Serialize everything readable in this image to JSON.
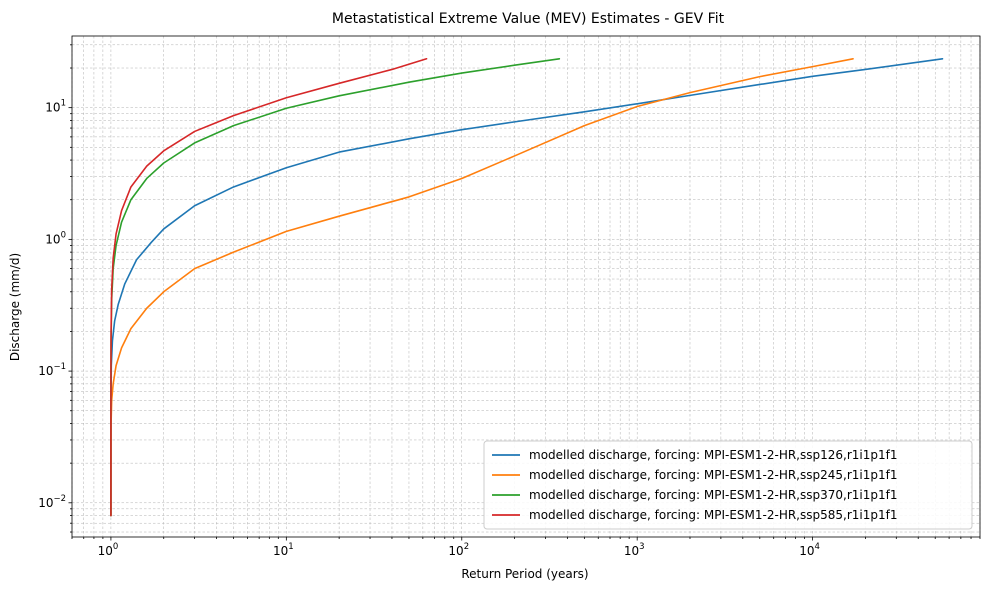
{
  "chart_data": {
    "type": "line",
    "title": "Metastatistical Extreme Value (MEV) Estimates - GEV Fit",
    "xlabel": "Return Period (years)",
    "ylabel": "Discharge (mm/d)",
    "xscale": "log",
    "yscale": "log",
    "xlim": [
      0.6,
      90000
    ],
    "ylim": [
      0.0055,
      35
    ],
    "grid": true,
    "legend_position": "bottom-right",
    "x_ticks": [
      {
        "base": "10",
        "exp": "0",
        "value": 1
      },
      {
        "base": "10",
        "exp": "1",
        "value": 10
      },
      {
        "base": "10",
        "exp": "2",
        "value": 100
      },
      {
        "base": "10",
        "exp": "3",
        "value": 1000
      },
      {
        "base": "10",
        "exp": "4",
        "value": 10000
      }
    ],
    "y_ticks": [
      {
        "base": "10",
        "exp": "−2",
        "value": 0.01
      },
      {
        "base": "10",
        "exp": "−1",
        "value": 0.1
      },
      {
        "base": "10",
        "exp": "0",
        "value": 1
      },
      {
        "base": "10",
        "exp": "1",
        "value": 10
      }
    ],
    "series": [
      {
        "name": "modelled discharge, forcing: MPI-ESM1-2-HR,ssp126,r1i1p1f1",
        "color": "#1f77b4",
        "x": [
          1.0,
          1.0002,
          1.001,
          1.005,
          1.02,
          1.05,
          1.1,
          1.2,
          1.4,
          1.7,
          2.0,
          3.0,
          5.0,
          10,
          20,
          50,
          100,
          200,
          500,
          1000,
          2000,
          5000,
          10000,
          20000,
          55000
        ],
        "y": [
          0.008,
          0.03,
          0.06,
          0.11,
          0.17,
          0.24,
          0.32,
          0.46,
          0.7,
          0.95,
          1.2,
          1.8,
          2.5,
          3.5,
          4.6,
          5.8,
          6.8,
          7.8,
          9.3,
          10.7,
          12.4,
          15.0,
          17.3,
          19.5,
          23.5
        ]
      },
      {
        "name": "modelled discharge, forcing: MPI-ESM1-2-HR,ssp245,r1i1p1f1",
        "color": "#ff7f0e",
        "x": [
          1.0,
          1.0005,
          1.002,
          1.01,
          1.03,
          1.07,
          1.15,
          1.3,
          1.6,
          2.0,
          3.0,
          5.0,
          10,
          20,
          50,
          100,
          200,
          500,
          1000,
          2000,
          5000,
          10000,
          17000
        ],
        "y": [
          0.008,
          0.02,
          0.04,
          0.06,
          0.08,
          0.11,
          0.15,
          0.21,
          0.3,
          0.4,
          0.6,
          0.8,
          1.15,
          1.5,
          2.1,
          2.9,
          4.3,
          7.3,
          10.2,
          13.0,
          17.2,
          20.5,
          23.5
        ]
      },
      {
        "name": "modelled discharge, forcing: MPI-ESM1-2-HR,ssp370,r1i1p1f1",
        "color": "#2ca02c",
        "x": [
          1.0,
          1.0001,
          1.0005,
          1.002,
          1.01,
          1.03,
          1.07,
          1.15,
          1.3,
          1.6,
          2.0,
          3.0,
          5.0,
          10,
          20,
          50,
          100,
          200,
          360
        ],
        "y": [
          0.008,
          0.04,
          0.09,
          0.17,
          0.35,
          0.6,
          0.9,
          1.35,
          2.0,
          2.9,
          3.8,
          5.4,
          7.3,
          9.9,
          12.3,
          15.6,
          18.3,
          21.0,
          23.5
        ]
      },
      {
        "name": "modelled discharge, forcing: MPI-ESM1-2-HR,ssp585,r1i1p1f1",
        "color": "#d62728",
        "x": [
          1.0,
          1.0001,
          1.0005,
          1.002,
          1.01,
          1.03,
          1.07,
          1.15,
          1.3,
          1.6,
          2.0,
          3.0,
          5.0,
          10,
          20,
          40,
          63
        ],
        "y": [
          0.008,
          0.05,
          0.11,
          0.2,
          0.42,
          0.72,
          1.1,
          1.65,
          2.5,
          3.6,
          4.7,
          6.6,
          8.7,
          11.9,
          15.3,
          19.5,
          23.5
        ]
      }
    ]
  }
}
